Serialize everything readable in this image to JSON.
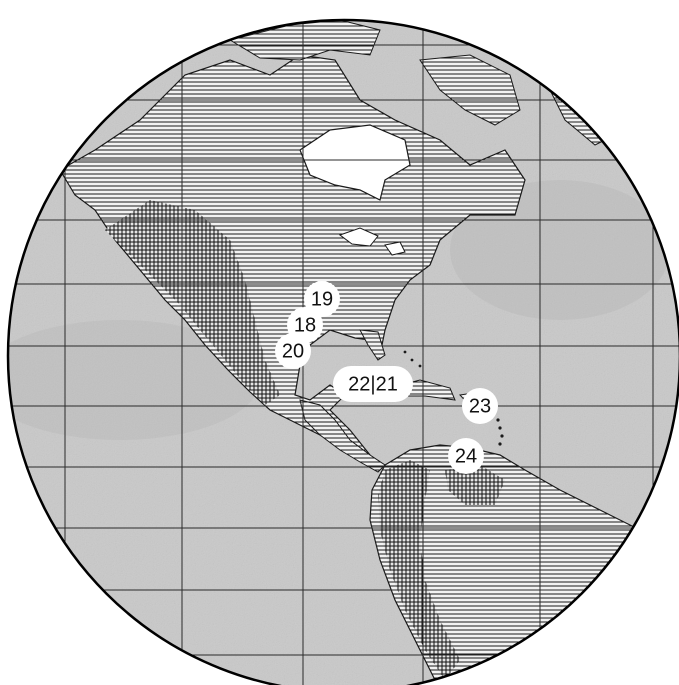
{
  "map": {
    "projection": "orthographic globe",
    "colors": {
      "ocean": "#c9c9c9",
      "land_stroke": "#1a1a1a",
      "grid": "#2a2a2a",
      "marker_fill": "#ffffff",
      "marker_text": "#111111"
    },
    "markers": [
      {
        "id": "m19",
        "label": "19"
      },
      {
        "id": "m18",
        "label": "18"
      },
      {
        "id": "m20",
        "label": "20"
      },
      {
        "id": "m22-21",
        "label": "22|21"
      },
      {
        "id": "m23",
        "label": "23"
      },
      {
        "id": "m24",
        "label": "24"
      }
    ]
  }
}
